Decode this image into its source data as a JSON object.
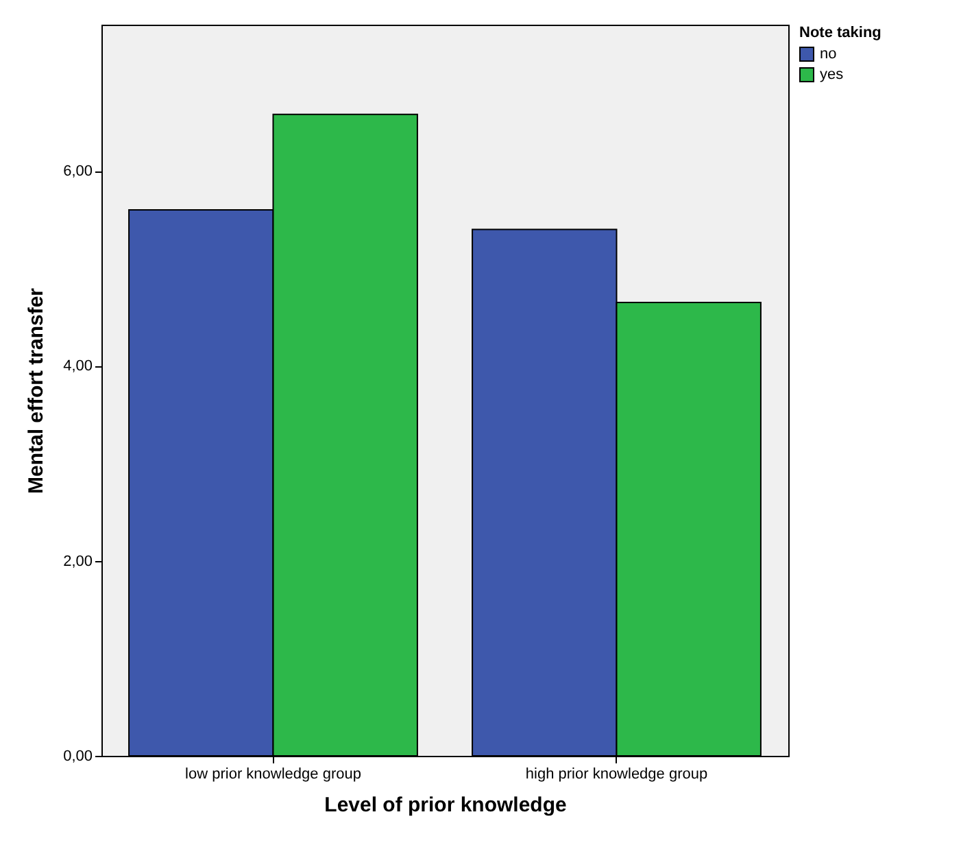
{
  "chart_data": {
    "type": "bar",
    "xlabel": "Level of prior knowledge",
    "ylabel": "Mental effort transfer",
    "legend_title": "Note taking",
    "categories": [
      "low prior knowledge group",
      "high prior knowledge group"
    ],
    "series": [
      {
        "name": "no",
        "color": "#3e58ac",
        "values": [
          5.6,
          5.4
        ]
      },
      {
        "name": "yes",
        "color": "#2db84a",
        "values": [
          6.58,
          4.65
        ]
      }
    ],
    "ylim": [
      0,
      7.5
    ],
    "yticks": [
      {
        "value": 0,
        "label": "0,00"
      },
      {
        "value": 2,
        "label": "2,00"
      },
      {
        "value": 4,
        "label": "4,00"
      },
      {
        "value": 6,
        "label": "6,00"
      }
    ],
    "grid": false,
    "legend": "top right"
  }
}
